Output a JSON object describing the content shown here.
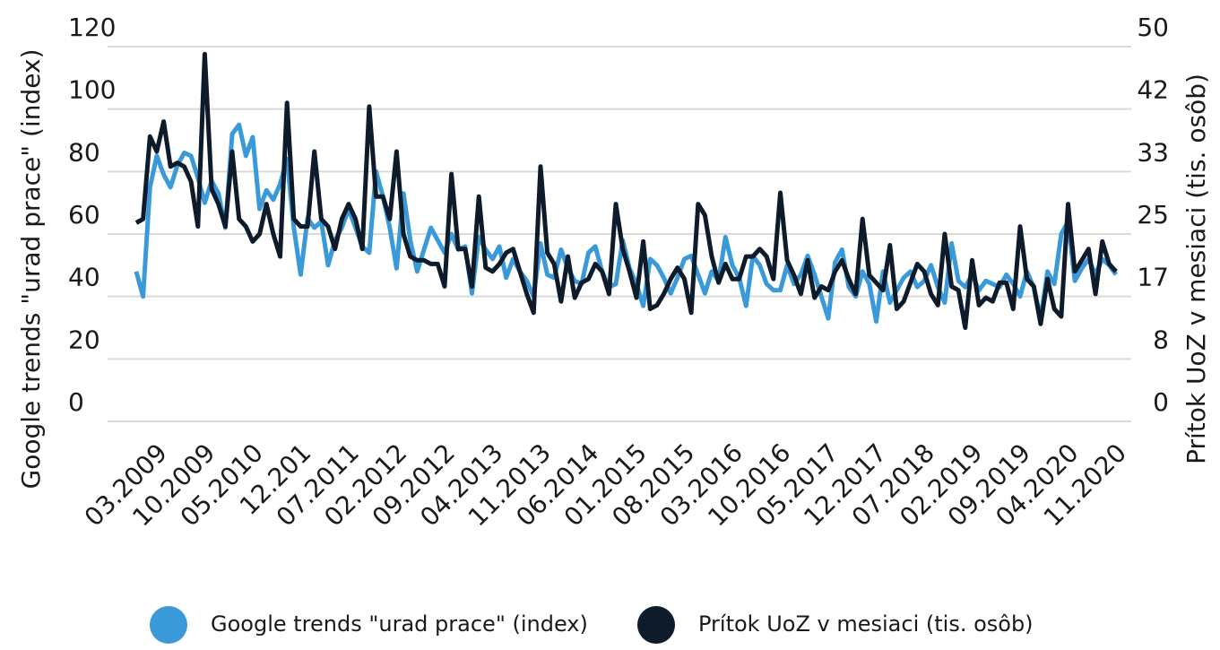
{
  "chart_data": {
    "type": "line",
    "ylabel": "Google trends \"urad prace\" (index)",
    "y2label": "Prítok UoZ v mesiaci (tis. osôb)",
    "categories": [
      null,
      null,
      "03.2009",
      null,
      null,
      null,
      null,
      null,
      null,
      "10.2009",
      null,
      null,
      null,
      null,
      null,
      null,
      "05.2010",
      null,
      null,
      null,
      null,
      null,
      null,
      "12.201",
      null,
      null,
      null,
      null,
      null,
      null,
      "07.2011",
      null,
      null,
      null,
      null,
      null,
      null,
      "02.2012",
      null,
      null,
      null,
      null,
      null,
      null,
      "09.2012",
      null,
      null,
      null,
      null,
      null,
      null,
      "04.2013",
      null,
      null,
      null,
      null,
      null,
      null,
      "11.2013",
      null,
      null,
      null,
      null,
      null,
      null,
      "06.2014",
      null,
      null,
      null,
      null,
      null,
      null,
      "01.2015",
      null,
      null,
      null,
      null,
      null,
      null,
      "08.2015",
      null,
      null,
      null,
      null,
      null,
      null,
      "03.2016",
      null,
      null,
      null,
      null,
      null,
      null,
      "10.2016",
      null,
      null,
      null,
      null,
      null,
      null,
      "05.2017",
      null,
      null,
      null,
      null,
      null,
      null,
      "12.2017",
      null,
      null,
      null,
      null,
      null,
      null,
      "07.2018",
      null,
      null,
      null,
      null,
      null,
      null,
      "02.2019",
      null,
      null,
      null,
      null,
      null,
      null,
      "09.2019",
      null,
      null,
      null,
      null,
      null,
      null,
      "04.2020",
      null,
      null,
      null,
      null,
      null,
      null,
      "11.2020",
      null
    ],
    "series": [
      {
        "name": "Google trends \"urad prace\" (index)",
        "color": "#3a9ad9",
        "axis": "y",
        "values": [
          48,
          40,
          75,
          85,
          79,
          75,
          82,
          86,
          85,
          78,
          70,
          77,
          73,
          62,
          92,
          95,
          85,
          91,
          68,
          74,
          71,
          76,
          84,
          62,
          47,
          65,
          62,
          64,
          50,
          58,
          62,
          68,
          62,
          56,
          54,
          80,
          72,
          62,
          49,
          73,
          58,
          48,
          55,
          62,
          58,
          54,
          60,
          55,
          56,
          41,
          59,
          55,
          52,
          56,
          46,
          52,
          48,
          45,
          40,
          57,
          47,
          46,
          55,
          49,
          45,
          44,
          54,
          56,
          48,
          43,
          44,
          58,
          49,
          44,
          37,
          52,
          50,
          46,
          41,
          46,
          52,
          53,
          47,
          41,
          48,
          45,
          59,
          50,
          46,
          37,
          53,
          50,
          44,
          42,
          42,
          50,
          44,
          47,
          53,
          47,
          40,
          33,
          51,
          55,
          43,
          40,
          48,
          44,
          32,
          48,
          38,
          42,
          46,
          48,
          43,
          45,
          50,
          43,
          38,
          57,
          45,
          43,
          47,
          42,
          45,
          44,
          43,
          47,
          44,
          40,
          48,
          43,
          33,
          48,
          44,
          60,
          64,
          45,
          49,
          52,
          47,
          52,
          50,
          47
        ]
      },
      {
        "name": "Prítok UoZ v mesiaci (tis. osôb)",
        "color": "#0d1b2a",
        "axis": "y2",
        "values": [
          26.5,
          27,
          38,
          36,
          40,
          34,
          34.5,
          34,
          32,
          26,
          49,
          31,
          29,
          26,
          36,
          27,
          26,
          24,
          25,
          29,
          25,
          22,
          42.5,
          27,
          26,
          26,
          36,
          27,
          26,
          23,
          27,
          29,
          27,
          23,
          42,
          30,
          30,
          27,
          36,
          25,
          22,
          21.5,
          21.5,
          21,
          21,
          18,
          33,
          23,
          23,
          18,
          30,
          20.5,
          20,
          21,
          22.5,
          23,
          20,
          17,
          14.5,
          34,
          22.5,
          21,
          16,
          22,
          16.5,
          18.5,
          19,
          21,
          20,
          17,
          29,
          23,
          20,
          16.5,
          24,
          15,
          15.5,
          17,
          19,
          20.5,
          19,
          14.5,
          29,
          27.5,
          22,
          18.5,
          21,
          19,
          19,
          22,
          22,
          23,
          22,
          19,
          30.5,
          21.5,
          19.5,
          17,
          21.5,
          16.5,
          18,
          17.5,
          20,
          21.5,
          19,
          17,
          27,
          19.5,
          18.5,
          17.5,
          23.5,
          15,
          16,
          18.5,
          21,
          20,
          17,
          15.5,
          25,
          18,
          17.5,
          12.5,
          21.5,
          15.5,
          16.5,
          16,
          18.5,
          18.5,
          15,
          26,
          19,
          18,
          13,
          19,
          15,
          14,
          29,
          20,
          21.5,
          23,
          17,
          24,
          21,
          20
        ]
      }
    ],
    "ylim": [
      0,
      120
    ],
    "yticks": [
      0,
      20,
      40,
      60,
      80,
      100,
      120
    ],
    "y2lim": [
      0,
      50
    ],
    "y2ticks": [
      0,
      {
        "value": 8.33,
        "label": "8"
      },
      {
        "value": 16.67,
        "label": "17"
      },
      25,
      {
        "value": 33.33,
        "label": "33"
      },
      {
        "value": 41.67,
        "label": "42"
      },
      50
    ],
    "grid": true,
    "legend": "bottom"
  }
}
